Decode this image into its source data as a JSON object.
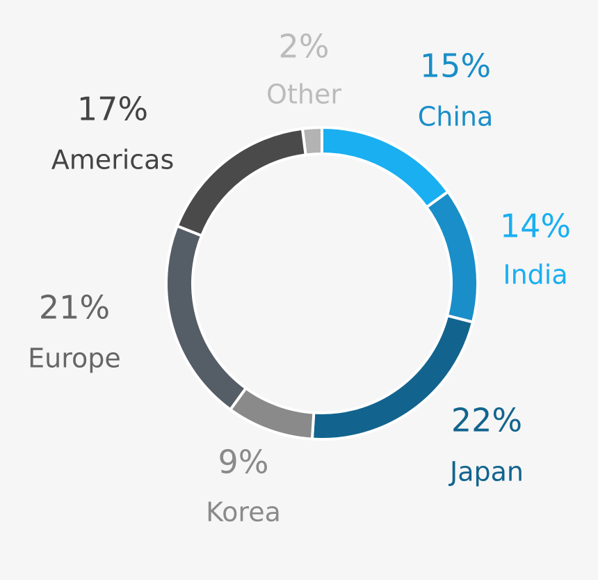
{
  "chart_data": {
    "type": "donut",
    "categories": [
      "China",
      "India",
      "Japan",
      "Korea",
      "Europe",
      "Americas",
      "Other"
    ],
    "values": [
      15,
      14,
      22,
      9,
      21,
      17,
      2
    ],
    "value_labels": [
      "15%",
      "14%",
      "22%",
      "9%",
      "21%",
      "17%",
      "2%"
    ],
    "colors": [
      "#1aaff0",
      "#1a8ec8",
      "#12648e",
      "#8a8a8a",
      "#555d66",
      "#4a4a4a",
      "#b3b3b3"
    ]
  }
}
